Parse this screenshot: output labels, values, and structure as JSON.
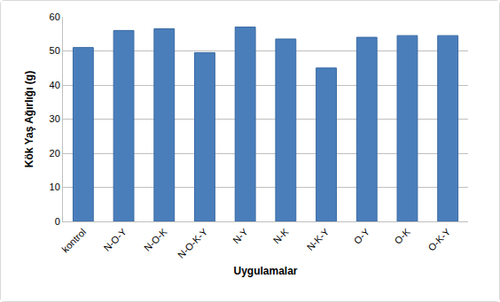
{
  "chart_data": {
    "type": "bar",
    "x_label": "Uygulamalar",
    "y_label": "Kök Yaş Ağırlığı (g)",
    "categories": [
      "kontrol",
      "N-O-Y",
      "N-O-K",
      "N-O-K-Y",
      "N-Y",
      "N-K",
      "N-K-Y",
      "O-Y",
      "O-K",
      "O-K-Y"
    ],
    "values": [
      51,
      56,
      56.5,
      49.5,
      57,
      53.5,
      45,
      54,
      54.5,
      54.5
    ],
    "color": "#4a7ebb",
    "ylim": [
      0,
      60
    ],
    "yticks": [
      0,
      10,
      20,
      30,
      40,
      50,
      60
    ],
    "grid": true
  }
}
